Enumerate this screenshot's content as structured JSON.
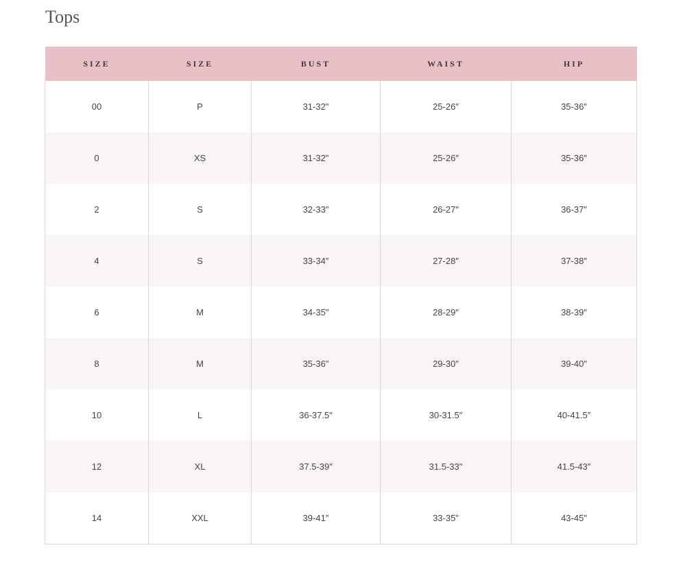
{
  "title": "Tops",
  "table": {
    "headers": [
      "SIZE",
      "SIZE",
      "BUST",
      "WAIST",
      "HIP"
    ],
    "rows": [
      [
        "00",
        "P",
        "31-32\"",
        "25-26″",
        "35-36″"
      ],
      [
        "0",
        "XS",
        "31-32\"",
        "25-26″",
        "35-36″"
      ],
      [
        "2",
        "S",
        "32-33\"",
        "26-27″",
        "36-37″"
      ],
      [
        "4",
        "S",
        "33-34″",
        "27-28″",
        "37-38″"
      ],
      [
        "6",
        "M",
        "34-35\"",
        "28-29″",
        "38-39″"
      ],
      [
        "8",
        "M",
        "35-36\"",
        "29-30″",
        "39-40″"
      ],
      [
        "10",
        "L",
        "36-37.5\"",
        "30-31.5″",
        "40-41.5″"
      ],
      [
        "12",
        "XL",
        "37.5-39″",
        "31.5-33\"",
        "41.5-43″"
      ],
      [
        "14",
        "XXL",
        "39-41″",
        "33-35\"",
        "43-45″"
      ]
    ]
  },
  "colors": {
    "header_bg": "#e8c0c5",
    "alt_row_bg": "#faf5f5"
  }
}
